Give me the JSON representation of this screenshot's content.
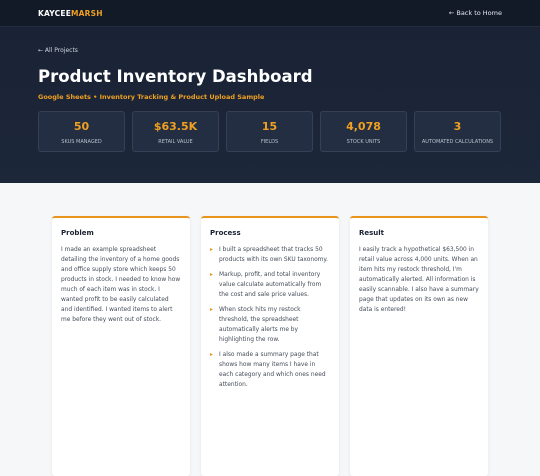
{
  "nav": {
    "logo_first": "KAYCEE",
    "logo_second": "MARSH",
    "back_link": "← Back to Home"
  },
  "hero": {
    "breadcrumb": "← All Projects",
    "title": "Product Inventory Dashboard",
    "subtitle": "Google Sheets • Inventory Tracking & Product Upload Sample",
    "stats": [
      {
        "value": "50",
        "label": "SKUs Managed"
      },
      {
        "value": "$63.5K",
        "label": "Retail Value"
      },
      {
        "value": "15",
        "label": "Fields"
      },
      {
        "value": "4,078",
        "label": "Stock Units"
      },
      {
        "value": "3",
        "label": "Automated Calculations"
      }
    ]
  },
  "cards": {
    "problem": {
      "title": "Problem",
      "text": "I made an example spreadsheet detailing the inventory of a home goods and office supply store which keeps 50 products in stock. I needed to know how much of each item was in stock. I wanted profit to be easily calculated and identified. I wanted items to alert me before they went out of stock."
    },
    "process": {
      "title": "Process",
      "items": [
        "I built a spreadsheet that tracks 50 products with its own SKU taxonomy.",
        "Markup, profit, and total inventory value calculate automatically from the cost and sale price values.",
        "When stock hits my restock threshold, the spreadsheet automatically alerts me by highlighting the row.",
        "I also made a summary page that shows how many items I have in each category and which ones need attention."
      ]
    },
    "result": {
      "title": "Result",
      "text": "I easily track a hypothetical $63,500 in retail value across 4,000 units. When an item hits my restock threshold, I'm automatically alerted. All information is easily scannable. I also have a summary page that updates on its own as new data is entered!"
    }
  }
}
